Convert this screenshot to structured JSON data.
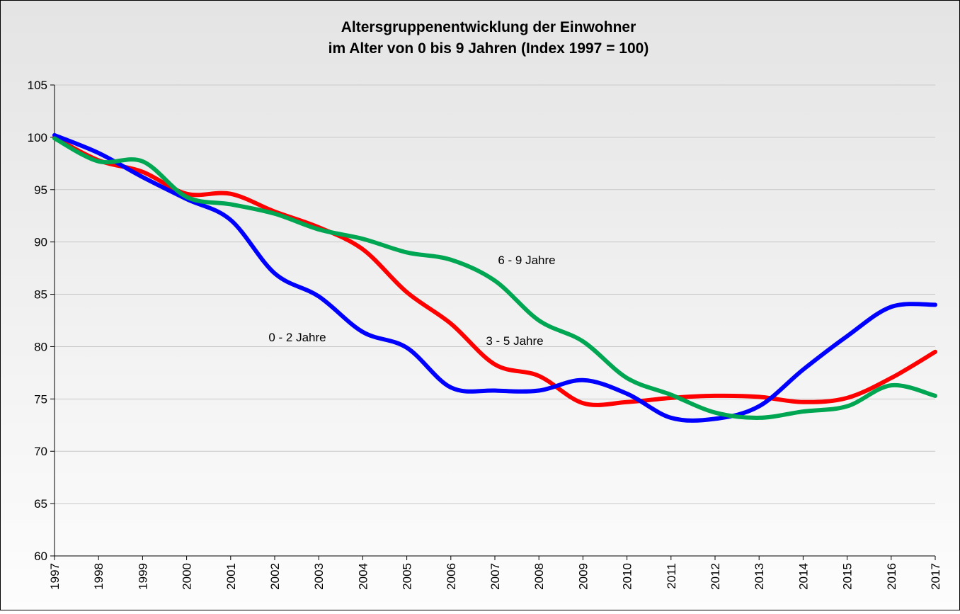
{
  "chart_data": {
    "type": "line",
    "title": "Altersgruppenentwicklung der Einwohner",
    "subtitle": "im Alter von 0 bis 9 Jahren (Index 1997 = 100)",
    "categories": [
      "1997",
      "1998",
      "1999",
      "2000",
      "2001",
      "2002",
      "2003",
      "2004",
      "2005",
      "2006",
      "2007",
      "2008",
      "2009",
      "2010",
      "2011",
      "2012",
      "2013",
      "2014",
      "2015",
      "2016",
      "2017"
    ],
    "series": [
      {
        "name": "0 - 2 Jahre",
        "color": "#0000ff",
        "values": [
          100.2,
          98.5,
          96.2,
          94.1,
          92.1,
          87.0,
          84.8,
          81.4,
          79.9,
          76.1,
          75.8,
          75.8,
          76.8,
          75.5,
          73.2,
          73.1,
          74.3,
          77.8,
          81.0,
          83.8,
          84.0
        ]
      },
      {
        "name": "3 - 5 Jahre",
        "color": "#ff0000",
        "values": [
          100.0,
          97.8,
          96.7,
          94.6,
          94.6,
          92.9,
          91.4,
          89.3,
          85.2,
          82.2,
          78.3,
          77.2,
          74.6,
          74.7,
          75.1,
          75.3,
          75.2,
          74.7,
          75.1,
          77.0,
          79.5
        ]
      },
      {
        "name": "6 - 9 Jahre",
        "color": "#00a651",
        "values": [
          99.9,
          97.7,
          97.7,
          94.3,
          93.6,
          92.7,
          91.2,
          90.3,
          89.0,
          88.3,
          86.3,
          82.5,
          80.5,
          77.0,
          75.4,
          73.7,
          73.2,
          73.8,
          74.3,
          76.3,
          75.3
        ]
      }
    ],
    "ylim": [
      60,
      105
    ],
    "yticks": [
      60,
      65,
      70,
      75,
      80,
      85,
      90,
      95,
      100,
      105
    ],
    "grid": true,
    "legend": false
  }
}
